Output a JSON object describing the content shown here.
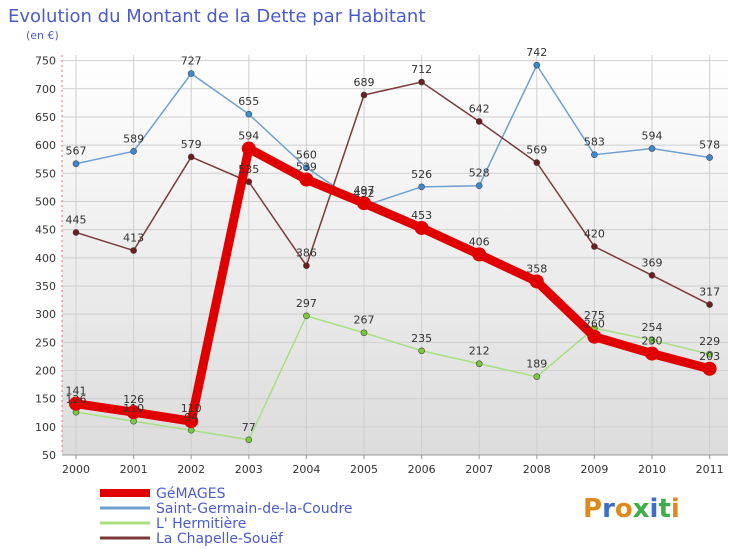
{
  "chart_data": {
    "type": "line",
    "title": "Evolution du Montant de la Dette par Habitant",
    "subtitle": "(en €)",
    "xlabel": "",
    "ylabel": "",
    "x": [
      "2000",
      "2001",
      "2002",
      "2003",
      "2004",
      "2005",
      "2006",
      "2007",
      "2008",
      "2009",
      "2010",
      "2011"
    ],
    "yticks": [
      50,
      100,
      150,
      200,
      250,
      300,
      350,
      400,
      450,
      500,
      550,
      600,
      650,
      700,
      750
    ],
    "ylim": [
      50,
      760
    ],
    "grid": true,
    "legend_position": "bottom-left",
    "series": [
      {
        "name": "GéMAGES",
        "color": "#e00000",
        "emphasis": true,
        "values": [
          141,
          126,
          110,
          594,
          539,
          497,
          453,
          406,
          358,
          260,
          230,
          203
        ]
      },
      {
        "name": "Saint-Germain-de-la-Coudre",
        "color": "#6ea0d2",
        "marker": "#3a8ad8",
        "values": [
          567,
          589,
          727,
          655,
          560,
          492,
          526,
          528,
          742,
          583,
          594,
          578
        ]
      },
      {
        "name": "L' Hermitière",
        "color": "#a8e080",
        "marker": "#7acb3c",
        "values": [
          126,
          110,
          94,
          77,
          297,
          267,
          235,
          212,
          189,
          275,
          254,
          229
        ]
      },
      {
        "name": "La Chapelle-Souëf",
        "color": "#7a3a3a",
        "marker": "#6e1c1c",
        "values": [
          445,
          413,
          579,
          535,
          386,
          689,
          712,
          642,
          569,
          420,
          369,
          317
        ]
      }
    ]
  },
  "watermark": "Proxiti"
}
